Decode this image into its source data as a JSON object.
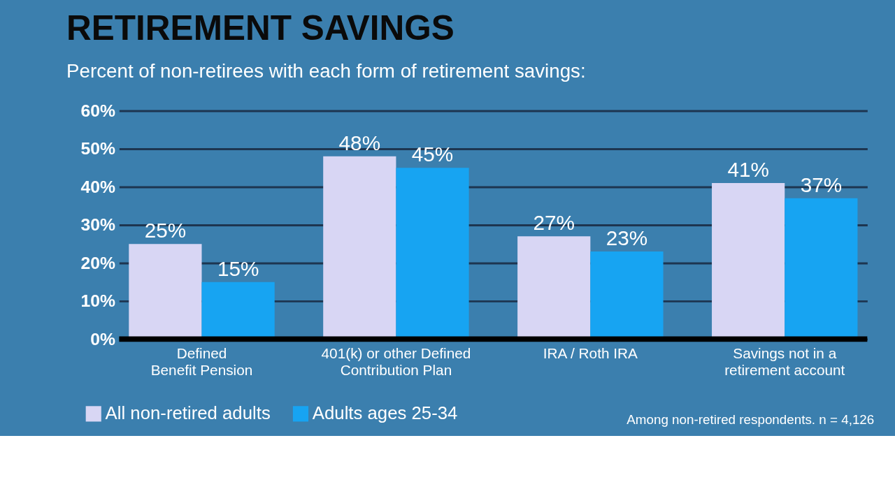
{
  "chart_data": {
    "type": "bar",
    "title": "RETIREMENT SAVINGS",
    "subtitle": "Percent of non-retirees with each form of retirement savings:",
    "categories": [
      "Defined Benefit Pension",
      "401(k) or other Defined Contribution Plan",
      "IRA / Roth IRA",
      "Savings not in a retirement account"
    ],
    "series": [
      {
        "name": "All non-retired adults",
        "color": "#d8d6f4",
        "values": [
          25,
          48,
          27,
          41
        ],
        "value_labels": [
          "25%",
          "48%",
          "27%",
          "41%"
        ]
      },
      {
        "name": "Adults ages 25-34",
        "color": "#17a4f2",
        "values": [
          15,
          45,
          23,
          37
        ],
        "value_labels": [
          "15%",
          "45%",
          "23%",
          "37%"
        ]
      }
    ],
    "ylim": [
      0,
      60
    ],
    "yticks": [
      {
        "value": 0,
        "label": "0%"
      },
      {
        "value": 10,
        "label": "10%"
      },
      {
        "value": 20,
        "label": "20%"
      },
      {
        "value": 30,
        "label": "30%"
      },
      {
        "value": 40,
        "label": "40%"
      },
      {
        "value": 50,
        "label": "50%"
      },
      {
        "value": 60,
        "label": "60%"
      }
    ],
    "grid": "y",
    "legend": "bottom left",
    "annotations": [
      "Among non-retired respondents. n = 4,126"
    ]
  }
}
